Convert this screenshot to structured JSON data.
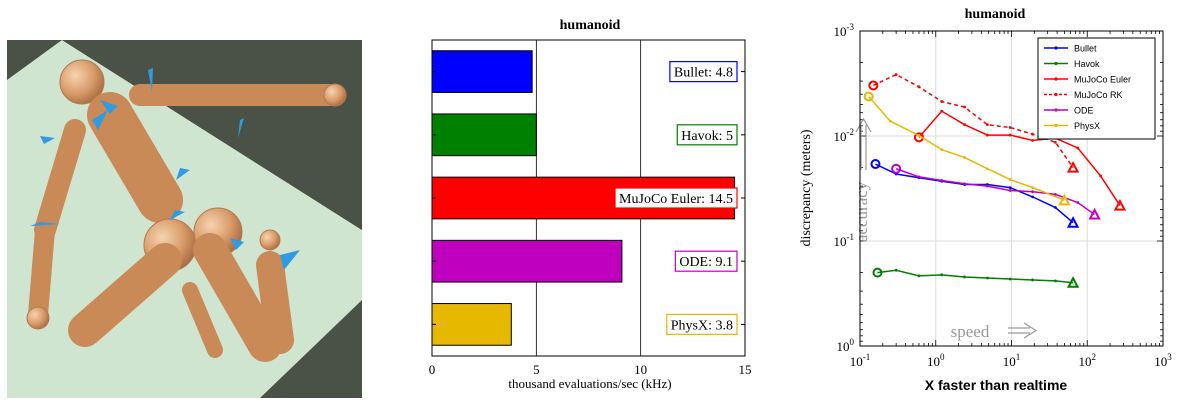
{
  "colors": {
    "bullet": "#0000ff",
    "havok": "#008000",
    "mujoco": "#ff0000",
    "ode": "#bf00bf",
    "physx": "#e6b800",
    "body": "#e0a97a",
    "floor_dark": "#4a5248",
    "floor_light": "#cfe5d0",
    "contact": "#2f9be0"
  },
  "render": {
    "icon": "humanoid-render-image"
  },
  "chart_data": [
    {
      "type": "bar",
      "orientation": "horizontal",
      "title": "humanoid",
      "xlabel": "thousand evaluations/sec (kHz)",
      "xlim": [
        0,
        15
      ],
      "xticks": [
        "0",
        "5",
        "10",
        "15"
      ],
      "grid": "x",
      "categories": [
        "Bullet",
        "Havok",
        "MuJoCo Euler",
        "ODE",
        "PhysX"
      ],
      "values": [
        4.8,
        5,
        14.5,
        9.1,
        3.8
      ],
      "labels": [
        "Bullet: 4.8",
        "Havok: 5",
        "MuJoCo Euler: 14.5",
        "ODE: 9.1",
        "PhysX: 3.8"
      ]
    },
    {
      "type": "line",
      "title": "humanoid",
      "xlabel": "X faster than realtime",
      "ylabel": "discrepancy (meters)",
      "xscale": "log",
      "yscale": "log",
      "xlim": [
        0.1,
        1000
      ],
      "ylim": [
        1,
        0.001
      ],
      "xtick_labels": [
        {
          "base": "10",
          "exp": "-1"
        },
        {
          "base": "10",
          "exp": "0"
        },
        {
          "base": "10",
          "exp": "1"
        },
        {
          "base": "10",
          "exp": "2"
        },
        {
          "base": "10",
          "exp": "3"
        }
      ],
      "ytick_labels": [
        {
          "base": "10",
          "exp": "0"
        },
        {
          "base": "10",
          "exp": "-1"
        },
        {
          "base": "10",
          "exp": "-2"
        },
        {
          "base": "10",
          "exp": "-3"
        }
      ],
      "legend_position": "top-right",
      "annotations": {
        "accuracy": "accuracy",
        "speed": "speed"
      },
      "series": [
        {
          "name": "Bullet",
          "color_key": "bullet",
          "dash": false,
          "x": [
            0.16,
            0.3,
            0.6,
            1.2,
            2.4,
            4.8,
            9.6,
            19,
            38,
            65
          ],
          "y": [
            0.0185,
            0.023,
            0.025,
            0.027,
            0.029,
            0.029,
            0.031,
            0.038,
            0.048,
            0.067
          ]
        },
        {
          "name": "Havok",
          "color_key": "havok",
          "dash": false,
          "x": [
            0.17,
            0.3,
            0.6,
            1.2,
            2.4,
            4.8,
            9.6,
            19,
            38,
            65
          ],
          "y": [
            0.2,
            0.19,
            0.215,
            0.21,
            0.22,
            0.225,
            0.23,
            0.235,
            0.24,
            0.25
          ]
        },
        {
          "name": "MuJoCo Euler",
          "color_key": "mujoco",
          "dash": false,
          "x": [
            0.6,
            1.2,
            2.4,
            4.8,
            9.6,
            19,
            38,
            75,
            150,
            270
          ],
          "y": [
            0.0103,
            0.0058,
            0.0078,
            0.0098,
            0.0098,
            0.011,
            0.0105,
            0.013,
            0.024,
            0.046
          ]
        },
        {
          "name": "MuJoCo RK",
          "color_key": "mujoco",
          "dash": true,
          "x": [
            0.15,
            0.3,
            0.6,
            1.2,
            2.4,
            4.8,
            9.6,
            19,
            38,
            65
          ],
          "y": [
            0.0033,
            0.0026,
            0.0034,
            0.0047,
            0.0053,
            0.0078,
            0.0083,
            0.0096,
            0.0115,
            0.02
          ]
        },
        {
          "name": "ODE",
          "color_key": "ode",
          "dash": false,
          "x": [
            0.3,
            0.6,
            1.2,
            2.4,
            4.8,
            9.6,
            19,
            38,
            75,
            125
          ],
          "y": [
            0.0205,
            0.0245,
            0.0265,
            0.0285,
            0.03,
            0.033,
            0.034,
            0.036,
            0.043,
            0.056
          ]
        },
        {
          "name": "PhysX",
          "color_key": "physx",
          "dash": false,
          "x": [
            0.13,
            0.25,
            0.6,
            1.2,
            2.4,
            4.8,
            9.6,
            19,
            50
          ],
          "y": [
            0.0042,
            0.0072,
            0.0099,
            0.0135,
            0.016,
            0.0205,
            0.026,
            0.031,
            0.041
          ]
        }
      ]
    }
  ]
}
